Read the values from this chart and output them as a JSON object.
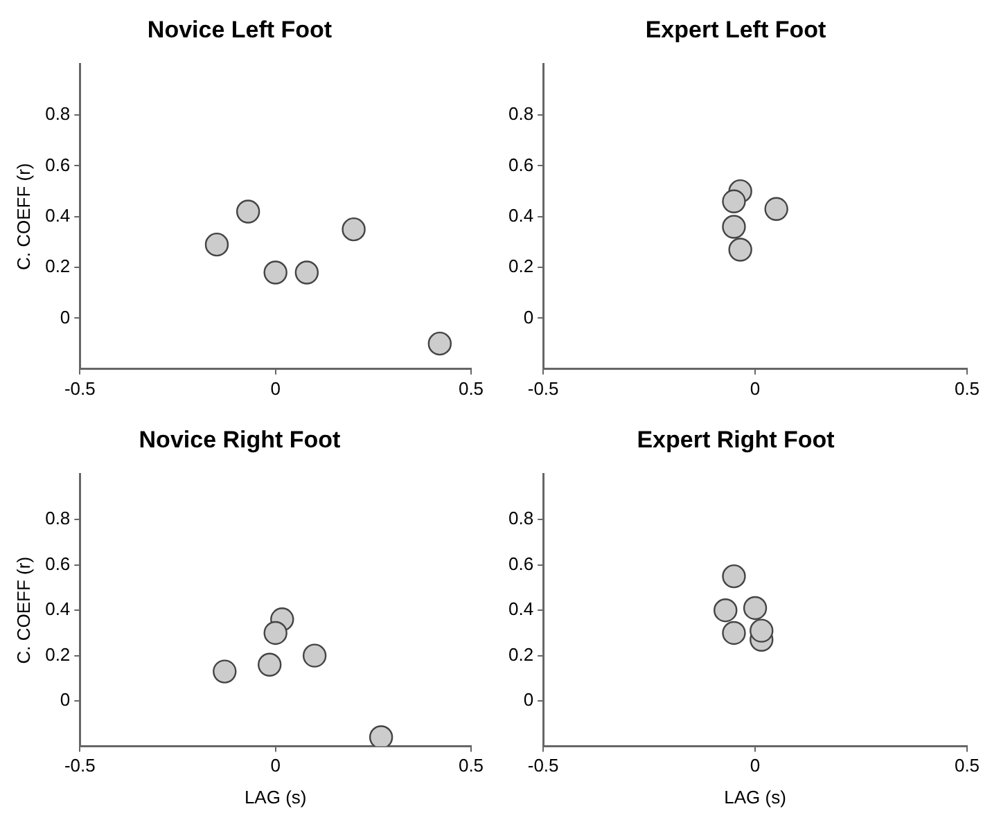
{
  "chart_data": [
    {
      "type": "scatter",
      "title": "Novice Left Foot",
      "ylabel": "C. COEFF (r)",
      "marker": "circle",
      "grid": false,
      "legend": false,
      "xlim": [
        -0.5,
        0.5
      ],
      "xticks": [
        -0.5,
        0,
        0.5
      ],
      "ylim": [
        -0.2,
        1.0
      ],
      "yticks": [
        0,
        0.2,
        0.4,
        0.6,
        0.8
      ],
      "series": [
        {
          "color": "#cccccc",
          "x": [
            -0.15,
            -0.07,
            0,
            0.08,
            0.2,
            0.42
          ],
          "values": [
            0.29,
            0.42,
            0.18,
            0.18,
            0.35,
            -0.1
          ]
        }
      ]
    },
    {
      "type": "scatter",
      "title": "Expert Left Foot",
      "marker": "circle",
      "grid": false,
      "legend": false,
      "xlim": [
        -0.5,
        0.5
      ],
      "xticks": [
        -0.5,
        0,
        0.5
      ],
      "ylim": [
        -0.2,
        1.0
      ],
      "yticks": [
        0,
        0.2,
        0.4,
        0.6,
        0.8
      ],
      "series": [
        {
          "color": "#cccccc",
          "x": [
            -0.035,
            -0.05,
            0.05,
            -0.05,
            -0.035
          ],
          "values": [
            0.5,
            0.46,
            0.43,
            0.36,
            0.27
          ]
        }
      ]
    },
    {
      "type": "scatter",
      "title": "Novice Right Foot",
      "xlabel": "LAG (s)",
      "ylabel": "C. COEFF (r)",
      "marker": "circle",
      "grid": false,
      "legend": false,
      "xlim": [
        -0.5,
        0.5
      ],
      "xticks": [
        -0.5,
        0,
        0.5
      ],
      "ylim": [
        -0.2,
        1.0
      ],
      "yticks": [
        0,
        0.2,
        0.4,
        0.6,
        0.8
      ],
      "series": [
        {
          "color": "#cccccc",
          "x": [
            0.017,
            0,
            0.1,
            -0.015,
            -0.13,
            0.27
          ],
          "values": [
            0.36,
            0.3,
            0.2,
            0.16,
            0.13,
            -0.16
          ]
        }
      ]
    },
    {
      "type": "scatter",
      "title": "Expert Right Foot",
      "xlabel": "LAG (s)",
      "marker": "circle",
      "grid": false,
      "legend": false,
      "xlim": [
        -0.5,
        0.5
      ],
      "xticks": [
        -0.5,
        0,
        0.5
      ],
      "ylim": [
        -0.2,
        1.0
      ],
      "yticks": [
        0,
        0.2,
        0.4,
        0.6,
        0.8
      ],
      "series": [
        {
          "color": "#cccccc",
          "x": [
            -0.05,
            -0.07,
            0,
            -0.05,
            0.015,
            0.015
          ],
          "values": [
            0.55,
            0.4,
            0.41,
            0.3,
            0.27,
            0.31
          ]
        }
      ]
    }
  ]
}
